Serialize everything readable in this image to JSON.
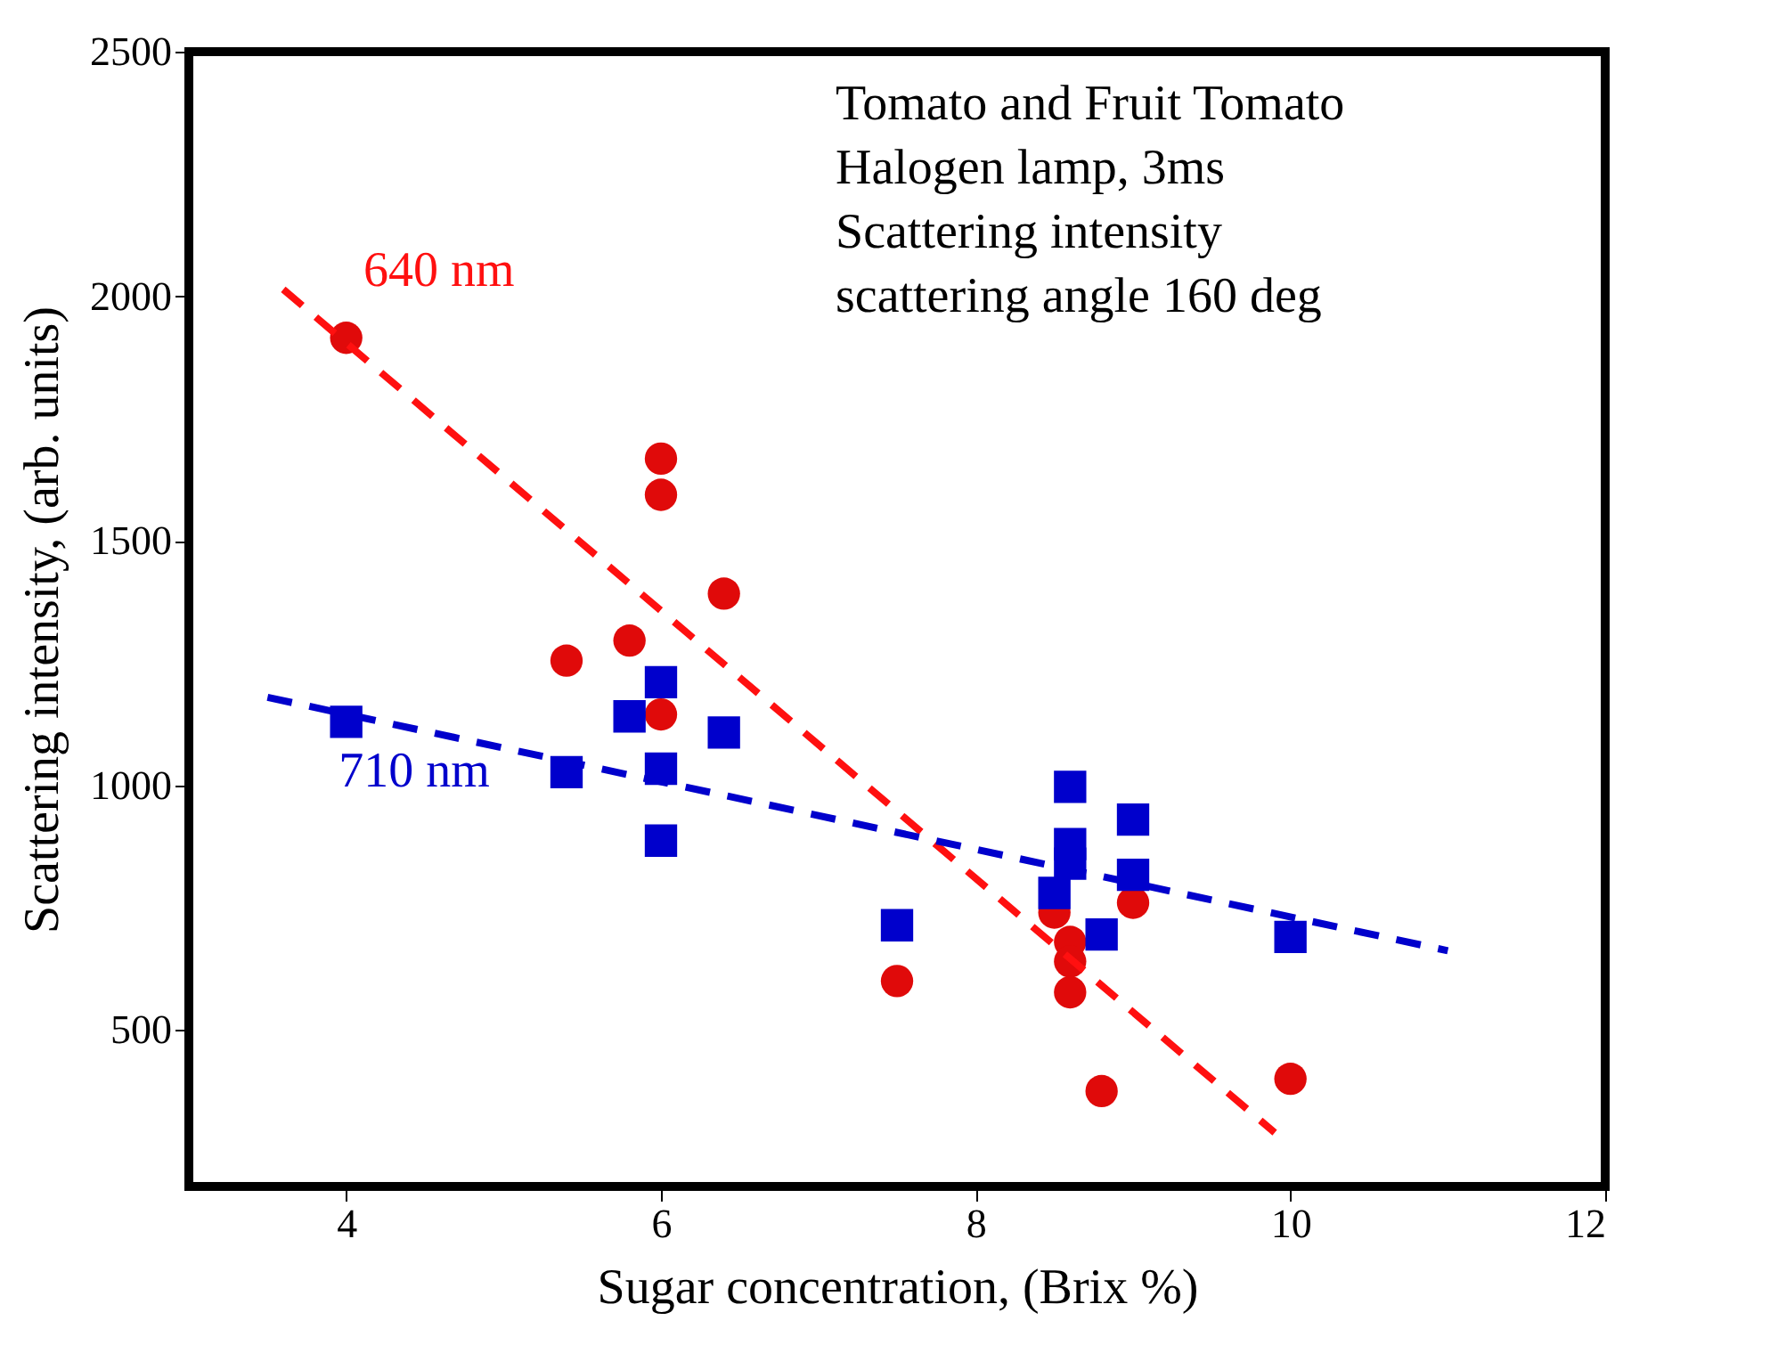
{
  "chart_data": {
    "type": "scatter",
    "xlabel": "Sugar concentration, (Brix %)",
    "ylabel": "Scattering intensity, (arb. units)",
    "xlim": [
      3,
      12
    ],
    "xticks": [
      4,
      6,
      8,
      10,
      12
    ],
    "ylim": [
      180,
      2500
    ],
    "yticks": [
      500,
      1000,
      1500,
      2000,
      2500
    ],
    "grid": false,
    "legend": false,
    "annotations": [
      "Tomato and Fruit Tomato",
      "Halogen lamp, 3ms",
      "Scattering  intensity",
      "scattering angle 160 deg"
    ],
    "series": [
      {
        "marker": "circle",
        "color": "#e00a0a",
        "x": [
          4,
          6,
          6,
          6.4,
          5.4,
          5.8,
          6,
          7.5,
          8.5,
          8.6,
          8.6,
          8.6,
          9,
          8.8,
          10
        ],
        "values": [
          1915,
          1668,
          1594,
          1392,
          1255,
          1296,
          1145,
          600,
          740,
          680,
          640,
          577,
          760,
          375,
          400
        ]
      },
      {
        "marker": "square",
        "color": "#0000cc",
        "x": [
          4,
          5.4,
          5.8,
          6,
          6,
          6,
          6.4,
          7.5,
          8.6,
          8.6,
          8.6,
          8.5,
          8.8,
          9,
          9,
          10
        ],
        "values": [
          1130,
          1027,
          1141,
          1211,
          1034,
          887,
          1108,
          714,
          997,
          880,
          840,
          780,
          695,
          930,
          817,
          690
        ]
      },
      {
        "type": "line",
        "name": "640 nm",
        "color": "#ff1010",
        "line_style": "dashed",
        "marker": "none",
        "x": [
          3.6,
          9.9
        ],
        "values": [
          2014,
          290
        ]
      },
      {
        "type": "line",
        "name": "710 nm",
        "color": "#0000cc",
        "line_style": "dashed",
        "marker": "none",
        "x": [
          3.5,
          11
        ],
        "values": [
          1180,
          662
        ]
      }
    ]
  }
}
